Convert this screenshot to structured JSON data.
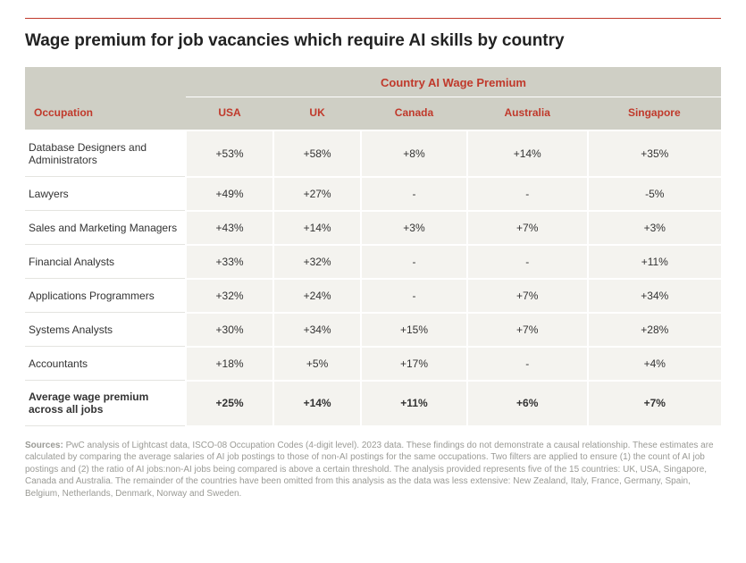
{
  "title": "Wage premium for job vacancies which require AI skills by country",
  "table": {
    "group_header": "Country AI Wage Premium",
    "occupation_header": "Occupation",
    "countries": [
      "USA",
      "UK",
      "Canada",
      "Australia",
      "Singapore"
    ],
    "rows": [
      {
        "occupation": "Database Designers and Administrators",
        "values": [
          "+53%",
          "+58%",
          "+8%",
          "+14%",
          "+35%"
        ]
      },
      {
        "occupation": "Lawyers",
        "values": [
          "+49%",
          "+27%",
          "-",
          "-",
          "-5%"
        ]
      },
      {
        "occupation": "Sales and Marketing Managers",
        "values": [
          "+43%",
          "+14%",
          "+3%",
          "+7%",
          "+3%"
        ]
      },
      {
        "occupation": "Financial Analysts",
        "values": [
          "+33%",
          "+32%",
          "-",
          "-",
          "+11%"
        ]
      },
      {
        "occupation": "Applications Programmers",
        "values": [
          "+32%",
          "+24%",
          "-",
          "+7%",
          "+34%"
        ]
      },
      {
        "occupation": "Systems Analysts",
        "values": [
          "+30%",
          "+34%",
          "+15%",
          "+7%",
          "+28%"
        ]
      },
      {
        "occupation": "Accountants",
        "values": [
          "+18%",
          "+5%",
          "+17%",
          "-",
          "+4%"
        ]
      }
    ],
    "average_row": {
      "label": "Average wage premium across all jobs",
      "values": [
        "+25%",
        "+14%",
        "+11%",
        "+6%",
        "+7%"
      ]
    }
  },
  "footnote": {
    "label": "Sources:",
    "text": "PwC analysis of Lightcast data, ISCO-08 Occupation Codes (4-digit level). 2023 data. These findings do not demonstrate a causal relationship. These estimates are calculated by comparing the average salaries of AI job postings to those of non-AI postings for the same occupations. Two filters are applied to ensure (1) the count of AI job postings and (2) the ratio of AI jobs:non-AI jobs being compared is above a certain threshold. The analysis provided represents five of the 15 countries: UK, USA, Singapore, Canada and Australia. The remainder of the countries have been omitted from this analysis as the data was less extensive: New Zealand, Italy, France, Germany, Spain, Belgium, Netherlands, Denmark, Norway and Sweden."
  },
  "colors": {
    "accent": "#c0392b",
    "header_bg": "#cfcfc5",
    "cell_bg": "#f4f3ef",
    "text": "#333333",
    "footnote": "#9a9a95"
  }
}
